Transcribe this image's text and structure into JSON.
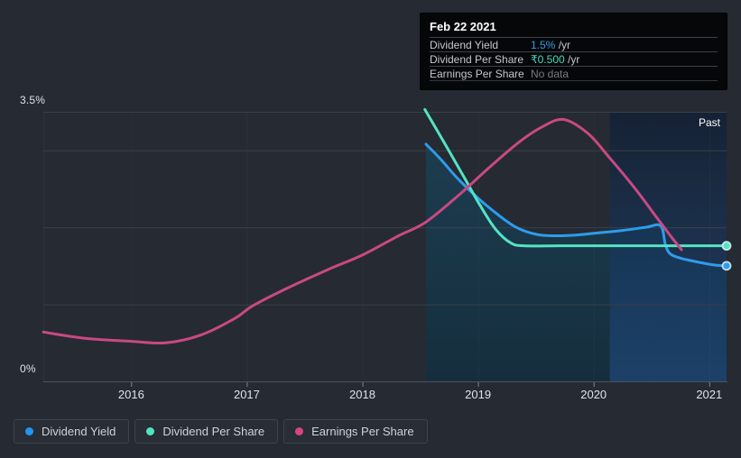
{
  "page": {
    "background": "#252a33"
  },
  "tooltip": {
    "date": "Feb 22 2021",
    "rows": [
      {
        "label": "Dividend Yield",
        "value": "1.5%",
        "suffix": " /yr",
        "value_color": "#2f9fec",
        "no_data": false
      },
      {
        "label": "Dividend Per Share",
        "value": "₹0.500",
        "suffix": " /yr",
        "value_color": "#41dcbc",
        "no_data": false
      },
      {
        "label": "Earnings Per Share",
        "value": "No data",
        "suffix": "",
        "value_color": "#767d84",
        "no_data": true
      }
    ]
  },
  "chart_data": {
    "type": "line",
    "ylabel_top": "3.5%",
    "ylabel_bottom": "0%",
    "past_label": "Past",
    "xlim": [
      2015.24,
      2021.15
    ],
    "ylim": [
      0,
      3.5
    ],
    "x_ticks": [
      2016,
      2017,
      2018,
      2019,
      2020,
      2021
    ],
    "gridlines_y": [
      1,
      2,
      3,
      3.5
    ],
    "grid_on": true,
    "legend_position": "bottom-left",
    "past_region_start": 2020.14,
    "note": "y values are on the left axis scale (0-3.5%); Dividend Per Share is overlaid in ₹ (flat level = ₹0.500/yr)",
    "series": [
      {
        "name": "Dividend Yield",
        "color": "#2e9ceb",
        "end_dot": true,
        "area_fill": true,
        "points": [
          [
            2018.55,
            3.08
          ],
          [
            2018.68,
            2.88
          ],
          [
            2018.82,
            2.64
          ],
          [
            2019.0,
            2.38
          ],
          [
            2019.16,
            2.18
          ],
          [
            2019.33,
            2.0
          ],
          [
            2019.5,
            1.91
          ],
          [
            2019.65,
            1.89
          ],
          [
            2019.85,
            1.9
          ],
          [
            2020.05,
            1.93
          ],
          [
            2020.25,
            1.96
          ],
          [
            2020.45,
            2.0
          ],
          [
            2020.58,
            2.02
          ],
          [
            2020.62,
            1.78
          ],
          [
            2020.66,
            1.66
          ],
          [
            2020.75,
            1.6
          ],
          [
            2020.9,
            1.55
          ],
          [
            2021.05,
            1.51
          ],
          [
            2021.15,
            1.5
          ]
        ]
      },
      {
        "name": "Dividend Per Share",
        "color": "#54e4c3",
        "end_dot": true,
        "area_fill": false,
        "points": [
          [
            2018.54,
            3.53
          ],
          [
            2018.7,
            3.12
          ],
          [
            2018.88,
            2.65
          ],
          [
            2019.02,
            2.28
          ],
          [
            2019.15,
            1.98
          ],
          [
            2019.28,
            1.8
          ],
          [
            2019.4,
            1.76
          ],
          [
            2019.7,
            1.76
          ],
          [
            2020.0,
            1.76
          ],
          [
            2020.5,
            1.76
          ],
          [
            2021.0,
            1.76
          ],
          [
            2021.15,
            1.76
          ]
        ]
      },
      {
        "name": "Earnings Per Share",
        "color": "#c94983",
        "end_dot": false,
        "area_fill": false,
        "points": [
          [
            2015.24,
            0.64
          ],
          [
            2015.6,
            0.56
          ],
          [
            2016.0,
            0.52
          ],
          [
            2016.3,
            0.5
          ],
          [
            2016.6,
            0.6
          ],
          [
            2016.9,
            0.82
          ],
          [
            2017.05,
            0.98
          ],
          [
            2017.35,
            1.21
          ],
          [
            2017.7,
            1.45
          ],
          [
            2018.0,
            1.64
          ],
          [
            2018.3,
            1.88
          ],
          [
            2018.55,
            2.07
          ],
          [
            2018.85,
            2.44
          ],
          [
            2019.1,
            2.78
          ],
          [
            2019.35,
            3.1
          ],
          [
            2019.55,
            3.3
          ],
          [
            2019.74,
            3.4
          ],
          [
            2019.95,
            3.22
          ],
          [
            2020.14,
            2.9
          ],
          [
            2020.35,
            2.52
          ],
          [
            2020.55,
            2.12
          ],
          [
            2020.68,
            1.86
          ],
          [
            2020.76,
            1.71
          ]
        ]
      }
    ],
    "colors": {
      "gridline": "#3a4048",
      "axis_line": "#4b535c",
      "tick": "#7f878f",
      "tick_label": "#dfe3e7",
      "area_top": "#1d3d50",
      "area_bottom": "#152e3d",
      "past_top": "rgba(10,28,52,0.60)",
      "past_bottom": "rgba(34,80,140,0.55)"
    }
  },
  "legend": {
    "items": [
      {
        "label": "Dividend Yield",
        "color": "#2196f3"
      },
      {
        "label": "Dividend Per Share",
        "color": "#50e3c2"
      },
      {
        "label": "Earnings Per Share",
        "color": "#d6457f"
      }
    ]
  }
}
